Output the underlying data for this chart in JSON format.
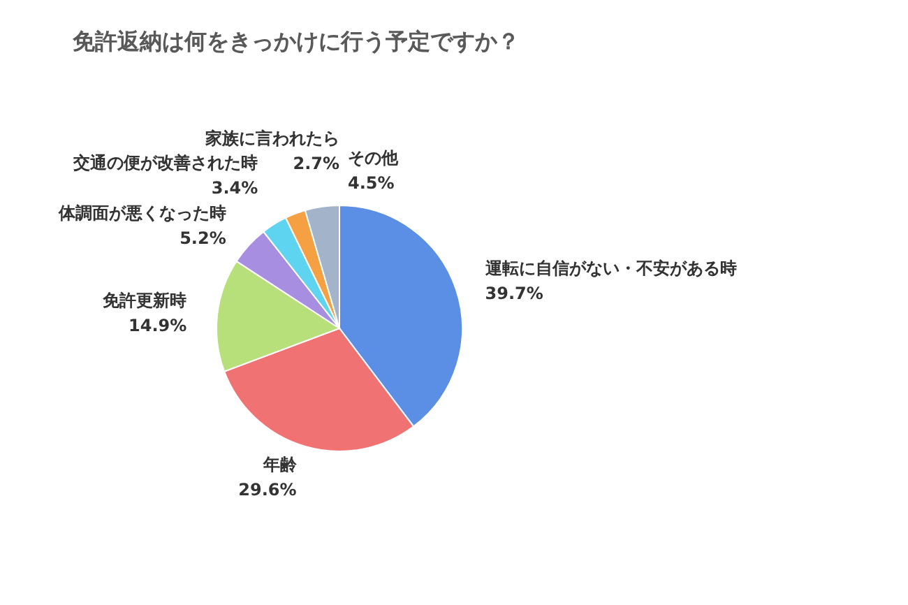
{
  "chart_data": {
    "type": "pie",
    "title": "免許返納は何をきっかけに行う予定ですか？",
    "categories": [
      "運転に自信がない・不安がある時",
      "年齢",
      "免許更新時",
      "体調面が悪くなった時",
      "交通の便が改善された時",
      "家族に言われたら",
      "その他"
    ],
    "values": [
      39.7,
      29.6,
      14.9,
      5.2,
      3.4,
      2.7,
      4.5
    ],
    "colors": [
      "#5b8fe6",
      "#f07272",
      "#b8e07a",
      "#a88ee0",
      "#5fd4f0",
      "#f5a043",
      "#a3b3c9"
    ],
    "value_labels": [
      "39.7%",
      "29.6%",
      "14.9%",
      "5.2%",
      "3.4%",
      "2.7%",
      "4.5%"
    ]
  }
}
